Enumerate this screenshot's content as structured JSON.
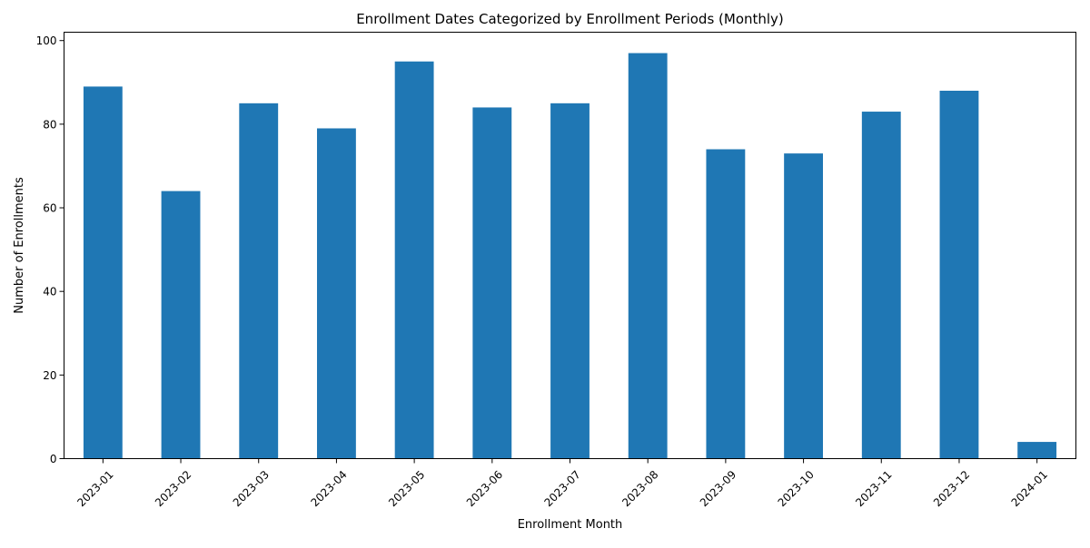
{
  "chart_data": {
    "type": "bar",
    "title": "Enrollment Dates Categorized by Enrollment Periods (Monthly)",
    "xlabel": "Enrollment Month",
    "ylabel": "Number of Enrollments",
    "categories": [
      "2023-01",
      "2023-02",
      "2023-03",
      "2023-04",
      "2023-05",
      "2023-06",
      "2023-07",
      "2023-08",
      "2023-09",
      "2023-10",
      "2023-11",
      "2023-12",
      "2024-01"
    ],
    "values": [
      89,
      64,
      85,
      79,
      95,
      84,
      85,
      97,
      74,
      73,
      83,
      88,
      4
    ],
    "ylim": [
      0,
      102
    ],
    "yticks": [
      0,
      20,
      40,
      60,
      80,
      100
    ],
    "bar_color": "#1f77b4",
    "grid": false,
    "legend": "none",
    "xtick_rotation": 45
  }
}
